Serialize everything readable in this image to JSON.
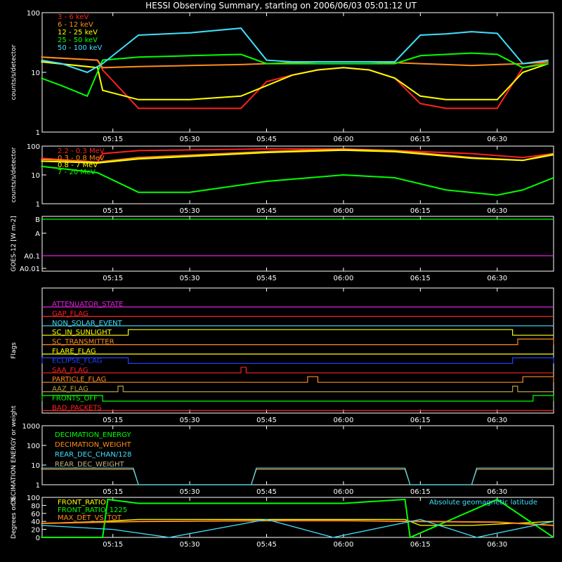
{
  "title": "HESSI Observing Summary, starting on 2006/06/03 05:01:12 UT",
  "time_ticks": [
    "05:15",
    "05:30",
    "05:45",
    "06:00",
    "06:15",
    "06:30"
  ],
  "colors": {
    "background": "#000000",
    "axes": "#ffffff",
    "title": "#ffffff",
    "red": "#ff2020",
    "orange": "#ff8c1a",
    "yellow": "#ffff00",
    "green": "#00ff00",
    "cyan": "#40e0ff",
    "magenta": "#e020e0",
    "blue": "#2040ff",
    "olive": "#b0a040",
    "tan": "#c8b080"
  },
  "chart_data": [
    {
      "panel": "hard-xray-lightcurves",
      "type": "line",
      "ylabel": "counts/s/detector",
      "yscale": "log",
      "ylim": [
        1,
        100
      ],
      "ytick_labels": [
        "1",
        "10",
        "100"
      ],
      "xlim": [
        "05:01:12",
        "06:41:00"
      ],
      "series": [
        {
          "name": "3 - 6 keV",
          "color": "red",
          "x": [
            "05:01",
            "05:12",
            "05:13",
            "05:20",
            "05:30",
            "05:40",
            "05:45",
            "05:50",
            "05:55",
            "06:00",
            "06:05",
            "06:10",
            "06:15",
            "06:20",
            "06:25",
            "06:30",
            "06:35",
            "06:40"
          ],
          "y": [
            18,
            16,
            11,
            2.5,
            2.5,
            2.5,
            7,
            9,
            11,
            12,
            11,
            8,
            3,
            2.5,
            2.5,
            2.5,
            12,
            15
          ]
        },
        {
          "name": "6 - 12 keV",
          "color": "orange",
          "x": [
            "05:01",
            "05:12",
            "05:13",
            "05:20",
            "05:30",
            "05:40",
            "05:45",
            "05:50",
            "05:55",
            "06:00",
            "06:05",
            "06:10",
            "06:15",
            "06:20",
            "06:25",
            "06:30",
            "06:35",
            "06:40"
          ],
          "y": [
            18,
            16,
            12,
            12.5,
            13,
            13.5,
            14,
            14.5,
            15,
            15,
            15,
            14.5,
            14,
            13.5,
            13,
            13.5,
            14,
            15
          ]
        },
        {
          "name": "12 - 25 keV",
          "color": "yellow",
          "x": [
            "05:01",
            "05:12",
            "05:13",
            "05:20",
            "05:30",
            "05:40",
            "05:45",
            "05:50",
            "05:55",
            "06:00",
            "06:05",
            "06:10",
            "06:15",
            "06:20",
            "06:25",
            "06:30",
            "06:35",
            "06:40"
          ],
          "y": [
            15,
            12,
            5,
            3.5,
            3.5,
            4,
            6,
            9,
            11,
            12,
            11,
            8,
            4,
            3.5,
            3.5,
            3.5,
            10,
            14
          ]
        },
        {
          "name": "25 - 50 keV",
          "color": "green",
          "x": [
            "05:01",
            "05:05",
            "05:10",
            "05:13",
            "05:20",
            "05:30",
            "05:40",
            "05:45",
            "05:50",
            "05:55",
            "06:00",
            "06:05",
            "06:10",
            "06:15",
            "06:20",
            "06:25",
            "06:30",
            "06:35",
            "06:40"
          ],
          "y": [
            8,
            6,
            4,
            16,
            18,
            19,
            20,
            14,
            14,
            14,
            14,
            14,
            14,
            19,
            20,
            21,
            20,
            12,
            14
          ]
        },
        {
          "name": "50 - 100 keV",
          "color": "cyan",
          "x": [
            "05:01",
            "05:05",
            "05:10",
            "05:13",
            "05:20",
            "05:30",
            "05:40",
            "05:45",
            "05:50",
            "05:55",
            "06:00",
            "06:05",
            "06:10",
            "06:15",
            "06:20",
            "06:25",
            "06:30",
            "06:35",
            "06:40"
          ],
          "y": [
            16,
            14,
            10,
            14,
            42,
            46,
            55,
            16,
            15,
            15,
            15,
            15,
            15,
            42,
            44,
            48,
            45,
            14,
            16
          ]
        }
      ]
    },
    {
      "panel": "gamma-ray-lightcurves",
      "type": "line",
      "ylabel": "counts/s/detector",
      "yscale": "log",
      "ylim": [
        1,
        100
      ],
      "ytick_labels": [
        "1",
        "10",
        "100"
      ],
      "series": [
        {
          "name": "2.2 - 0.3 MeV",
          "color": "red",
          "x": [
            "05:01",
            "05:12",
            "05:13",
            "05:20",
            "05:45",
            "06:00",
            "06:10",
            "06:25",
            "06:35",
            "06:41"
          ],
          "y": [
            38,
            28,
            55,
            70,
            80,
            80,
            70,
            55,
            40,
            55
          ]
        },
        {
          "name": "0.3 - 0.8 MeV",
          "color": "orange",
          "x": [
            "05:01",
            "05:12",
            "05:20",
            "05:45",
            "06:00",
            "06:10",
            "06:25",
            "06:35",
            "06:41"
          ],
          "y": [
            35,
            28,
            40,
            65,
            78,
            70,
            40,
            32,
            55
          ]
        },
        {
          "name": "0.8 - 7 MeV",
          "color": "yellow",
          "x": [
            "05:01",
            "05:12",
            "05:20",
            "05:45",
            "06:00",
            "06:10",
            "06:25",
            "06:35",
            "06:41"
          ],
          "y": [
            30,
            26,
            36,
            60,
            72,
            64,
            38,
            32,
            50
          ]
        },
        {
          "name": "7 - 20 MeV",
          "color": "green",
          "x": [
            "05:01",
            "05:12",
            "05:20",
            "05:30",
            "05:45",
            "06:00",
            "06:10",
            "06:20",
            "06:30",
            "06:35",
            "06:41"
          ],
          "y": [
            20,
            12,
            2.5,
            2.5,
            6,
            10,
            8,
            3,
            2,
            3,
            8
          ]
        }
      ]
    },
    {
      "panel": "goes",
      "type": "line",
      "ylabel": "GOES-12 [W m-2]",
      "ytick_labels": [
        "B",
        "A",
        "A0.1",
        "A0.01"
      ],
      "series": [
        {
          "name": "GOES long",
          "color": "green",
          "x": [
            "05:01",
            "06:41"
          ],
          "y": [
            "B",
            "B"
          ]
        },
        {
          "name": "GOES short",
          "color": "magenta",
          "x": [
            "05:01",
            "06:41"
          ],
          "y": [
            "A0.1",
            "A0.1"
          ]
        }
      ]
    },
    {
      "panel": "flags",
      "type": "line",
      "ylabel": "Flags",
      "series": [
        {
          "name": "ATTENUATOR_STATE",
          "color": "magenta"
        },
        {
          "name": "GAP_FLAG",
          "color": "red"
        },
        {
          "name": "NON_SOLAR_EVENT",
          "color": "cyan"
        },
        {
          "name": "SC_IN_SUNLIGHT",
          "color": "yellow",
          "high_intervals": [
            [
              "05:18",
              "06:33"
            ]
          ]
        },
        {
          "name": "SC_TRANSMITTER",
          "color": "orange",
          "high_intervals": [
            [
              "06:34",
              "06:41"
            ]
          ]
        },
        {
          "name": "FLARE_FLAG",
          "color": "yellow"
        },
        {
          "name": "ECLIPSE_FLAG",
          "color": "blue",
          "high_intervals": [
            [
              "05:01",
              "05:18"
            ],
            [
              "06:33",
              "06:41"
            ]
          ]
        },
        {
          "name": "SAA_FLAG",
          "color": "red",
          "high_intervals": [
            [
              "05:40",
              "05:41"
            ]
          ]
        },
        {
          "name": "PARTICLE_FLAG",
          "color": "orange",
          "high_intervals": [
            [
              "05:53",
              "05:55"
            ],
            [
              "06:35",
              "06:41"
            ]
          ]
        },
        {
          "name": "AAZ_FLAG",
          "color": "olive",
          "high_intervals": [
            [
              "05:16",
              "05:17"
            ],
            [
              "06:33",
              "06:34"
            ]
          ]
        },
        {
          "name": "FRONTS_OFF",
          "color": "green",
          "high_intervals": [
            [
              "05:01",
              "05:13"
            ],
            [
              "06:37",
              "06:41"
            ]
          ]
        },
        {
          "name": "BAD_PACKETS",
          "color": "red"
        }
      ]
    },
    {
      "panel": "decimation",
      "type": "line",
      "ylabel": "DECIMATION ENERGY or weight",
      "yscale": "log",
      "ylim": [
        1,
        1000
      ],
      "ytick_labels": [
        "1",
        "10",
        "100",
        "1000"
      ],
      "series": [
        {
          "name": "DECIMATION_ENERGY",
          "color": "green"
        },
        {
          "name": "DECIMATION_WEIGHT",
          "color": "orange",
          "x": [
            "05:01",
            "05:19",
            "05:20",
            "05:42",
            "05:43",
            "06:12",
            "06:13",
            "06:25",
            "06:26",
            "06:41"
          ],
          "y": [
            6,
            6,
            1,
            1,
            6,
            6,
            1,
            1,
            6,
            6
          ]
        },
        {
          "name": "REAR_DEC_CHAN/128",
          "color": "cyan",
          "x": [
            "05:01",
            "05:19",
            "05:20",
            "05:42",
            "05:43",
            "06:12",
            "06:13",
            "06:25",
            "06:26",
            "06:41"
          ],
          "y": [
            7,
            7,
            1,
            1,
            7,
            7,
            1,
            1,
            7,
            7
          ]
        },
        {
          "name": "REAR_DEC_WEIGHT",
          "color": "tan"
        }
      ]
    },
    {
      "panel": "ratios",
      "type": "line",
      "ylabel": "Degrees or %",
      "ylim": [
        0,
        100
      ],
      "ytick_labels": [
        "0",
        "20",
        "40",
        "60",
        "80",
        "100"
      ],
      "annotation": "Absolute geomagnetic latitude",
      "series": [
        {
          "name": "FRONT_RATIO",
          "color": "yellow",
          "x": [
            "05:01",
            "05:13",
            "05:20",
            "05:42",
            "05:45",
            "06:00",
            "06:12",
            "06:15",
            "06:25",
            "06:41"
          ],
          "y": [
            35,
            40,
            45,
            45,
            45,
            45,
            45,
            30,
            30,
            40
          ]
        },
        {
          "name": "FRONT_RATIO_1225",
          "color": "green",
          "x": [
            "05:01",
            "05:13",
            "05:14",
            "05:20",
            "05:45",
            "06:00",
            "06:12",
            "06:13",
            "06:30",
            "06:41"
          ],
          "y": [
            0,
            0,
            95,
            85,
            85,
            85,
            95,
            0,
            95,
            0
          ]
        },
        {
          "name": "MAX_DET_VS_TOT",
          "color": "orange",
          "x": [
            "05:01",
            "05:20",
            "05:45",
            "06:00",
            "06:15",
            "06:30",
            "06:41"
          ],
          "y": [
            35,
            40,
            42,
            42,
            40,
            38,
            30
          ]
        },
        {
          "name": "Absolute geomagnetic latitude",
          "color": "cyan",
          "x": [
            "05:01",
            "05:15",
            "05:26",
            "05:45",
            "05:58",
            "06:15",
            "06:26",
            "06:41"
          ],
          "y": [
            30,
            20,
            0,
            45,
            0,
            45,
            0,
            40
          ]
        }
      ]
    }
  ]
}
